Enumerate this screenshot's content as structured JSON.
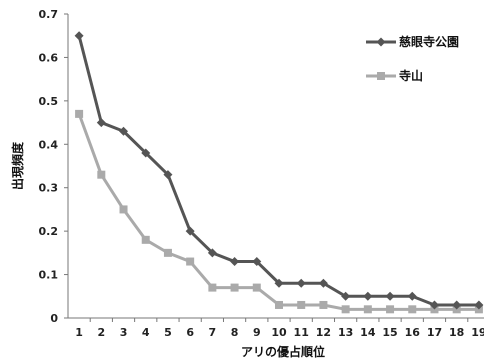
{
  "chart_data": {
    "type": "line",
    "xlabel": "アリの優占順位",
    "ylabel": "出現頻度",
    "categories": [
      "1",
      "2",
      "3",
      "4",
      "5",
      "6",
      "7",
      "8",
      "9",
      "10",
      "11",
      "12",
      "13",
      "14",
      "15",
      "16",
      "17",
      "18",
      "19"
    ],
    "ylim": [
      0,
      0.7
    ],
    "yticks": [
      "0",
      "0.1",
      "0.2",
      "0.3",
      "0.4",
      "0.5",
      "0.6",
      "0.7"
    ],
    "grid": false,
    "legend_position": "top-right",
    "series": [
      {
        "name": "慈眼寺公園",
        "color": "#555555",
        "marker": "diamond",
        "values": [
          0.65,
          0.45,
          0.43,
          0.38,
          0.33,
          0.2,
          0.15,
          0.13,
          0.13,
          0.08,
          0.08,
          0.08,
          0.05,
          0.05,
          0.05,
          0.05,
          0.03,
          0.03,
          0.03
        ]
      },
      {
        "name": "寺山",
        "color": "#aaaaaa",
        "marker": "square",
        "values": [
          0.47,
          0.33,
          0.25,
          0.18,
          0.15,
          0.13,
          0.07,
          0.07,
          0.07,
          0.03,
          0.03,
          0.03,
          0.02,
          0.02,
          0.02,
          0.02,
          0.02,
          0.02,
          0.02
        ]
      }
    ]
  }
}
